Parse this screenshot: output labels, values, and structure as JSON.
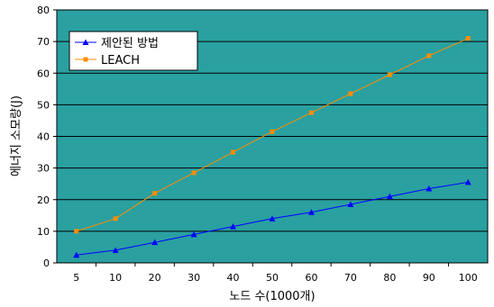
{
  "chart_data": {
    "type": "line",
    "xlabel": "노드 수(1000개)",
    "ylabel": "에너지 소모량(J)",
    "categories": [
      "5",
      "10",
      "20",
      "30",
      "40",
      "50",
      "60",
      "70",
      "80",
      "90",
      "100"
    ],
    "ylim": [
      0,
      80
    ],
    "yticks": [
      "0",
      "10",
      "20",
      "30",
      "40",
      "50",
      "60",
      "70",
      "80"
    ],
    "grid": true,
    "legend_position": "top-left",
    "series": [
      {
        "name": "제안된 방법",
        "color": "#0000ff",
        "marker": "triangle",
        "values": [
          2.5,
          4,
          6.5,
          9,
          11.5,
          14,
          16,
          18.5,
          21,
          23.5,
          25.5
        ]
      },
      {
        "name": "LEACH",
        "color": "#ff8c00",
        "marker": "square",
        "values": [
          10,
          14,
          22,
          28.5,
          35,
          41.5,
          47.5,
          53.5,
          59.5,
          65.5,
          71
        ]
      }
    ],
    "plot_background": "#2aa0a0",
    "gridline_color": "#000000"
  }
}
